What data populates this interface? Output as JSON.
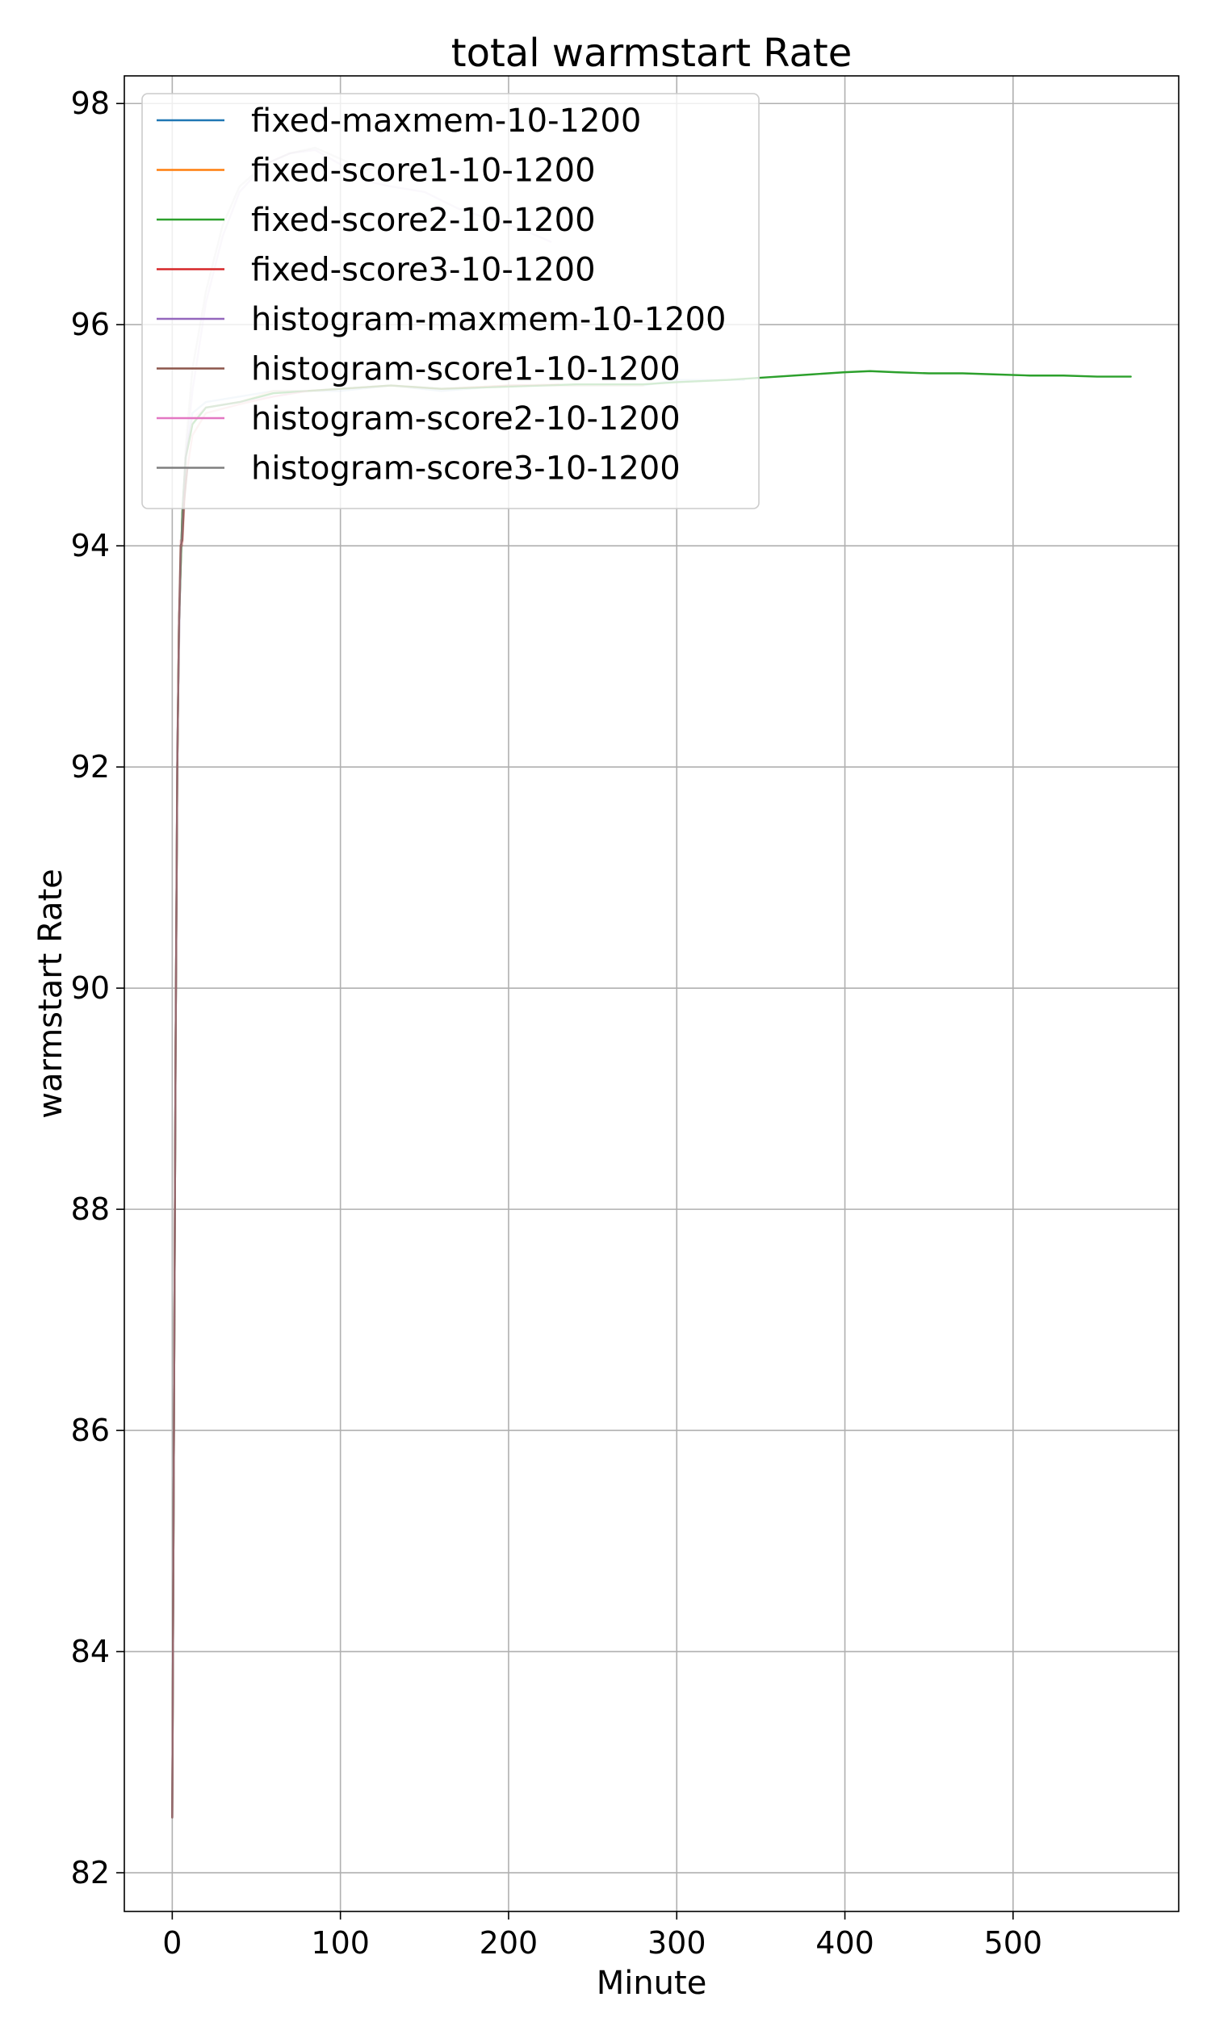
{
  "chart_data": {
    "type": "line",
    "title": "total warmstart Rate",
    "xlabel": "Minute",
    "ylabel": "warmstart Rate",
    "xlim": [
      -28.5,
      598.5
    ],
    "ylim": [
      81.65,
      98.25
    ],
    "x_ticks": [
      0,
      100,
      200,
      300,
      400,
      500
    ],
    "y_ticks": [
      82,
      84,
      86,
      88,
      90,
      92,
      94,
      96,
      98
    ],
    "grid": true,
    "legend_position": "top-left",
    "series": [
      {
        "name": "fixed-maxmem-10-1200",
        "color": "#1f77b4",
        "opacity": 0.25,
        "points": [
          [
            0,
            82.5
          ],
          [
            1,
            86.0
          ],
          [
            2,
            89.5
          ],
          [
            3,
            92.0
          ],
          [
            4,
            93.3
          ],
          [
            6,
            94.3
          ],
          [
            8,
            94.8
          ],
          [
            12,
            95.2
          ],
          [
            20,
            95.3
          ],
          [
            40,
            95.35
          ],
          [
            60,
            95.4
          ],
          [
            80,
            95.4
          ],
          [
            100,
            95.4
          ],
          [
            130,
            95.45
          ],
          [
            160,
            95.4
          ],
          [
            200,
            95.45
          ],
          [
            240,
            95.45
          ],
          [
            280,
            95.45
          ],
          [
            300,
            95.5
          ],
          [
            340,
            95.5
          ]
        ]
      },
      {
        "name": "fixed-score1-10-1200",
        "color": "#ff7f0e",
        "opacity": 0.25,
        "points": [
          [
            0,
            82.5
          ],
          [
            1,
            86.0
          ],
          [
            2,
            89.5
          ],
          [
            3,
            92.0
          ],
          [
            4,
            93.3
          ],
          [
            6,
            94.3
          ],
          [
            8,
            94.8
          ],
          [
            12,
            95.1
          ],
          [
            20,
            95.25
          ],
          [
            40,
            95.3
          ],
          [
            60,
            95.4
          ],
          [
            80,
            95.4
          ],
          [
            100,
            95.42
          ],
          [
            130,
            95.45
          ],
          [
            160,
            95.42
          ],
          [
            200,
            95.45
          ],
          [
            240,
            95.45
          ],
          [
            280,
            95.45
          ]
        ]
      },
      {
        "name": "fixed-score2-10-1200",
        "color": "#2ca02c",
        "opacity": 1,
        "points": [
          [
            0,
            82.5
          ],
          [
            1,
            86.0
          ],
          [
            2,
            89.5
          ],
          [
            3,
            92.0
          ],
          [
            4,
            93.3
          ],
          [
            6,
            94.3
          ],
          [
            8,
            94.8
          ],
          [
            12,
            95.1
          ],
          [
            20,
            95.25
          ],
          [
            40,
            95.3
          ],
          [
            60,
            95.38
          ],
          [
            80,
            95.4
          ],
          [
            100,
            95.42
          ],
          [
            130,
            95.45
          ],
          [
            160,
            95.42
          ],
          [
            200,
            95.44
          ],
          [
            240,
            95.46
          ],
          [
            280,
            95.46
          ],
          [
            300,
            95.48
          ],
          [
            330,
            95.5
          ],
          [
            350,
            95.52
          ],
          [
            380,
            95.55
          ],
          [
            400,
            95.57
          ],
          [
            415,
            95.58
          ],
          [
            430,
            95.57
          ],
          [
            450,
            95.56
          ],
          [
            470,
            95.56
          ],
          [
            490,
            95.55
          ],
          [
            510,
            95.54
          ],
          [
            530,
            95.54
          ],
          [
            550,
            95.53
          ],
          [
            570,
            95.53
          ]
        ]
      },
      {
        "name": "fixed-score3-10-1200",
        "color": "#d62728",
        "opacity": 0.25,
        "points": [
          [
            0,
            82.5
          ],
          [
            1,
            86.0
          ],
          [
            2,
            89.5
          ],
          [
            3,
            92.0
          ],
          [
            4,
            93.3
          ],
          [
            5,
            94.05
          ],
          [
            6,
            94.0
          ],
          [
            8,
            94.6
          ],
          [
            12,
            95.0
          ],
          [
            20,
            95.2
          ],
          [
            40,
            95.28
          ],
          [
            60,
            95.35
          ],
          [
            80,
            95.4
          ],
          [
            100,
            95.42
          ],
          [
            130,
            95.45
          ],
          [
            160,
            95.42
          ],
          [
            200,
            95.45
          ],
          [
            230,
            95.46
          ]
        ]
      },
      {
        "name": "histogram-maxmem-10-1200",
        "color": "#9467bd",
        "opacity": 0.25,
        "points": [
          [
            0,
            82.5
          ],
          [
            1,
            86.0
          ],
          [
            2,
            89.5
          ],
          [
            3,
            92.2
          ],
          [
            5,
            93.9
          ],
          [
            8,
            94.8
          ],
          [
            12,
            95.4
          ],
          [
            20,
            96.2
          ],
          [
            30,
            96.8
          ],
          [
            40,
            97.2
          ],
          [
            55,
            97.45
          ],
          [
            70,
            97.55
          ],
          [
            85,
            97.58
          ],
          [
            100,
            97.45
          ],
          [
            115,
            97.3
          ],
          [
            130,
            97.25
          ],
          [
            150,
            97.2
          ],
          [
            170,
            97.05
          ],
          [
            190,
            96.95
          ],
          [
            210,
            96.85
          ],
          [
            225,
            96.75
          ]
        ]
      },
      {
        "name": "histogram-score1-10-1200",
        "color": "#8c564b",
        "opacity": 0.9,
        "points": [
          [
            0,
            82.5
          ],
          [
            1,
            86.0
          ],
          [
            2,
            89.5
          ],
          [
            3,
            92.0
          ],
          [
            4,
            93.3
          ],
          [
            5,
            94.0
          ],
          [
            6,
            94.05
          ],
          [
            7,
            94.4
          ],
          [
            9,
            94.7
          ]
        ]
      },
      {
        "name": "histogram-score2-10-1200",
        "color": "#e377c2",
        "opacity": 0.25,
        "points": [
          [
            0,
            82.5
          ],
          [
            1,
            86.0
          ],
          [
            2,
            89.5
          ],
          [
            3,
            92.0
          ],
          [
            4,
            93.3
          ],
          [
            6,
            94.3
          ],
          [
            8,
            94.8
          ],
          [
            12,
            95.15
          ],
          [
            20,
            95.25
          ],
          [
            40,
            95.3
          ],
          [
            60,
            95.35
          ],
          [
            80,
            95.4
          ]
        ]
      },
      {
        "name": "histogram-score3-10-1200",
        "color": "#7f7f7f",
        "opacity": 0.25,
        "points": [
          [
            0,
            82.5
          ],
          [
            1,
            86.0
          ],
          [
            2,
            89.5
          ],
          [
            3,
            92.2
          ],
          [
            5,
            93.9
          ],
          [
            8,
            94.9
          ],
          [
            12,
            95.6
          ],
          [
            20,
            96.3
          ],
          [
            30,
            96.9
          ],
          [
            40,
            97.25
          ],
          [
            55,
            97.45
          ],
          [
            70,
            97.55
          ],
          [
            85,
            97.6
          ],
          [
            100,
            97.5
          ],
          [
            115,
            97.4
          ],
          [
            130,
            97.45
          ],
          [
            145,
            97.4
          ],
          [
            160,
            97.3
          ]
        ]
      }
    ]
  }
}
